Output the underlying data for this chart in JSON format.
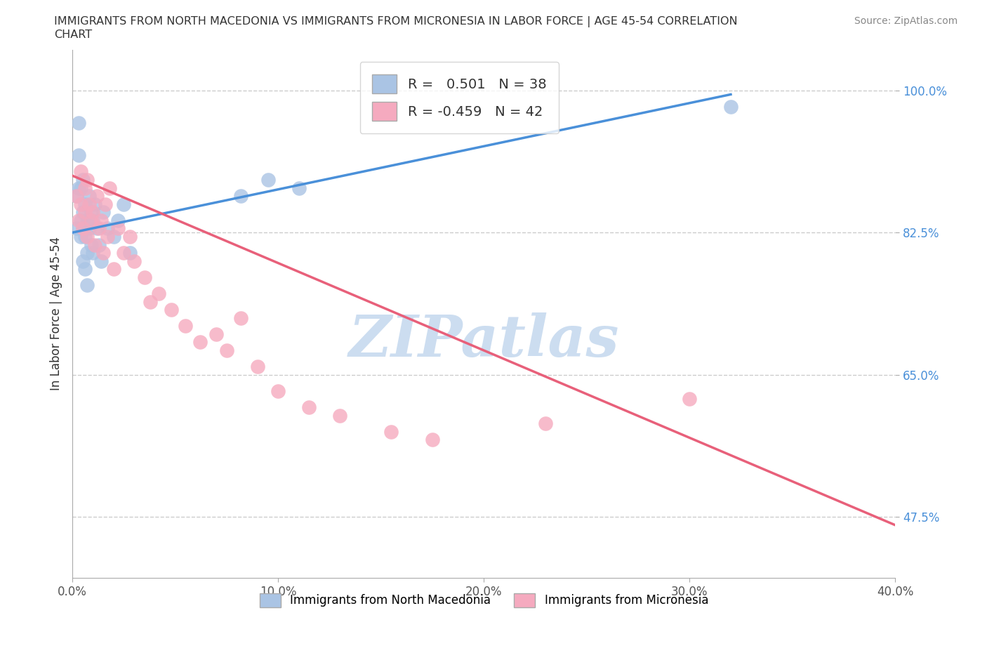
{
  "title_line1": "IMMIGRANTS FROM NORTH MACEDONIA VS IMMIGRANTS FROM MICRONESIA IN LABOR FORCE | AGE 45-54 CORRELATION",
  "title_line2": "CHART",
  "source": "Source: ZipAtlas.com",
  "ylabel": "In Labor Force | Age 45-54",
  "xlim": [
    0.0,
    0.4
  ],
  "ylim": [
    0.4,
    1.05
  ],
  "xticks": [
    0.0,
    0.1,
    0.2,
    0.3,
    0.4
  ],
  "xticklabels": [
    "0.0%",
    "10.0%",
    "20.0%",
    "30.0%",
    "40.0%"
  ],
  "yticks": [
    0.475,
    0.65,
    0.825,
    1.0
  ],
  "yticklabels": [
    "47.5%",
    "65.0%",
    "82.5%",
    "100.0%"
  ],
  "series1_color": "#aac4e4",
  "series2_color": "#f5aabf",
  "trendline1_color": "#4a90d9",
  "trendline2_color": "#e8607a",
  "R1": 0.501,
  "N1": 38,
  "R2": -0.459,
  "N2": 42,
  "watermark": "ZIPatlas",
  "watermark_color": "#ccddf0",
  "legend_label1": "Immigrants from North Macedonia",
  "legend_label2": "Immigrants from Micronesia",
  "nm_x": [
    0.002,
    0.002,
    0.003,
    0.003,
    0.003,
    0.004,
    0.004,
    0.004,
    0.005,
    0.005,
    0.005,
    0.005,
    0.006,
    0.006,
    0.006,
    0.007,
    0.007,
    0.007,
    0.008,
    0.008,
    0.009,
    0.009,
    0.01,
    0.01,
    0.011,
    0.012,
    0.013,
    0.014,
    0.015,
    0.017,
    0.02,
    0.022,
    0.025,
    0.028,
    0.082,
    0.095,
    0.11,
    0.32
  ],
  "nm_y": [
    0.83,
    0.87,
    0.88,
    0.92,
    0.96,
    0.84,
    0.88,
    0.82,
    0.85,
    0.89,
    0.83,
    0.79,
    0.86,
    0.82,
    0.78,
    0.84,
    0.8,
    0.76,
    0.87,
    0.83,
    0.85,
    0.81,
    0.84,
    0.8,
    0.86,
    0.83,
    0.81,
    0.79,
    0.85,
    0.83,
    0.82,
    0.84,
    0.86,
    0.8,
    0.87,
    0.89,
    0.88,
    0.98
  ],
  "mic_x": [
    0.002,
    0.003,
    0.004,
    0.004,
    0.005,
    0.006,
    0.006,
    0.007,
    0.007,
    0.008,
    0.009,
    0.01,
    0.011,
    0.012,
    0.013,
    0.014,
    0.015,
    0.016,
    0.017,
    0.018,
    0.02,
    0.022,
    0.025,
    0.028,
    0.03,
    0.035,
    0.038,
    0.042,
    0.048,
    0.055,
    0.062,
    0.07,
    0.075,
    0.082,
    0.09,
    0.1,
    0.115,
    0.13,
    0.155,
    0.175,
    0.23,
    0.3
  ],
  "mic_y": [
    0.87,
    0.84,
    0.9,
    0.86,
    0.83,
    0.88,
    0.85,
    0.89,
    0.82,
    0.86,
    0.84,
    0.85,
    0.81,
    0.87,
    0.83,
    0.84,
    0.8,
    0.86,
    0.82,
    0.88,
    0.78,
    0.83,
    0.8,
    0.82,
    0.79,
    0.77,
    0.74,
    0.75,
    0.73,
    0.71,
    0.69,
    0.7,
    0.68,
    0.72,
    0.66,
    0.63,
    0.61,
    0.6,
    0.58,
    0.57,
    0.59,
    0.62
  ],
  "trendline1_x": [
    0.0,
    0.32
  ],
  "trendline1_y": [
    0.825,
    0.995
  ],
  "trendline2_x": [
    0.0,
    0.4
  ],
  "trendline2_y": [
    0.895,
    0.465
  ]
}
